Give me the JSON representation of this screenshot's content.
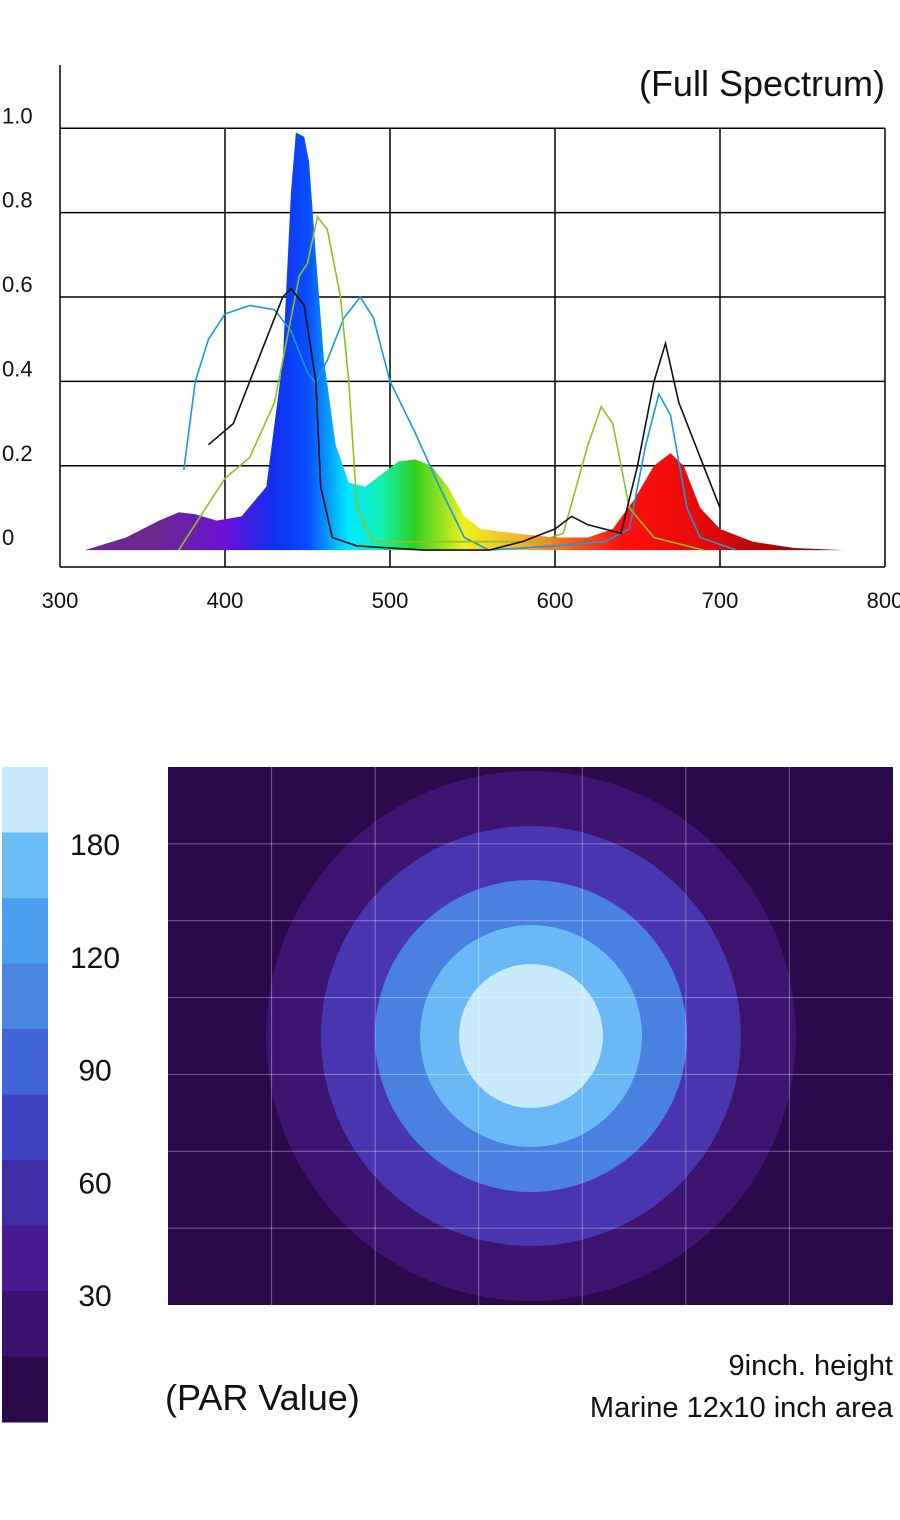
{
  "chart_data": [
    {
      "type": "spectrum",
      "title": "(Full Spectrum)",
      "xlim": [
        300,
        800
      ],
      "xticks": [
        300,
        400,
        500,
        600,
        700,
        800
      ],
      "ylim": [
        -0.04,
        1.15
      ],
      "yticks": [
        0,
        0.2,
        0.4,
        0.6,
        0.8,
        {
          "value": 1,
          "label": "1.0"
        }
      ],
      "grid": true,
      "series": [
        {
          "fill": "gradient",
          "gradient": [
            [
              360,
              "#6a2a8e"
            ],
            [
              400,
              "#6a10d8"
            ],
            [
              430,
              "#1030f0"
            ],
            [
              450,
              "#0a4cff"
            ],
            [
              475,
              "#00e8ff"
            ],
            [
              495,
              "#10f0b0"
            ],
            [
              515,
              "#30d020"
            ],
            [
              545,
              "#f0f020"
            ],
            [
              580,
              "#f8b030"
            ],
            [
              610,
              "#f06020"
            ],
            [
              640,
              "#ff1010"
            ],
            [
              690,
              "#e80808"
            ],
            [
              760,
              "#7a0a0a"
            ]
          ],
          "x": [
            315,
            340,
            360,
            372,
            382,
            395,
            410,
            425,
            435,
            440,
            443,
            448,
            451,
            455,
            460,
            467,
            475,
            485,
            495,
            505,
            515,
            525,
            535,
            545,
            555,
            575,
            600,
            620,
            635,
            648,
            660,
            670,
            678,
            688,
            700,
            720,
            745,
            775
          ],
          "values": [
            0,
            0.03,
            0.07,
            0.09,
            0.085,
            0.07,
            0.08,
            0.15,
            0.45,
            0.85,
            0.99,
            0.98,
            0.92,
            0.7,
            0.45,
            0.25,
            0.16,
            0.15,
            0.18,
            0.21,
            0.215,
            0.2,
            0.15,
            0.08,
            0.05,
            0.04,
            0.03,
            0.03,
            0.05,
            0.12,
            0.2,
            0.23,
            0.2,
            0.1,
            0.05,
            0.02,
            0.005,
            0
          ]
        },
        {
          "color": "#1a9ad6",
          "x": [
            375,
            382,
            390,
            400,
            415,
            430,
            440,
            450,
            455,
            462,
            472,
            482,
            490,
            500,
            515,
            530,
            545,
            560,
            600,
            630,
            645,
            655,
            663,
            670,
            680,
            688,
            710
          ],
          "values": [
            0.19,
            0.4,
            0.5,
            0.56,
            0.58,
            0.57,
            0.52,
            0.42,
            0.395,
            0.45,
            0.55,
            0.6,
            0.55,
            0.4,
            0.28,
            0.15,
            0.03,
            0,
            0.01,
            0.02,
            0.05,
            0.25,
            0.37,
            0.32,
            0.1,
            0.03,
            0
          ]
        },
        {
          "color": "#8dc21f",
          "x": [
            372,
            385,
            400,
            415,
            430,
            445,
            450,
            456,
            462,
            470,
            475,
            480,
            490,
            550,
            590,
            605,
            620,
            628,
            635,
            645,
            660,
            690
          ],
          "values": [
            0,
            0.08,
            0.17,
            0.22,
            0.35,
            0.65,
            0.68,
            0.79,
            0.76,
            0.6,
            0.4,
            0.1,
            0.02,
            0.02,
            0.02,
            0.04,
            0.25,
            0.34,
            0.3,
            0.1,
            0.03,
            0
          ]
        },
        {
          "color": "#111111",
          "x": [
            390,
            405,
            420,
            435,
            440,
            448,
            455,
            458,
            465,
            480,
            520,
            560,
            580,
            600,
            610,
            620,
            640,
            650,
            660,
            667,
            675,
            690,
            700
          ],
          "values": [
            0.25,
            0.3,
            0.45,
            0.6,
            0.62,
            0.58,
            0.4,
            0.15,
            0.03,
            0.01,
            0,
            0,
            0.02,
            0.05,
            0.08,
            0.06,
            0.04,
            0.2,
            0.4,
            0.49,
            0.35,
            0.2,
            0.1
          ]
        }
      ]
    },
    {
      "type": "contour",
      "title": "(PAR Value)",
      "notes": [
        "9inch. height",
        "Marine 12x10 inch area"
      ],
      "colorbar": {
        "colors": [
          "#c7eafc",
          "#6abef5",
          "#4aa0ee",
          "#4a85e2",
          "#3f65d8",
          "#3d43bf",
          "#3f2ea8",
          "#4a1a94",
          "#3a1270",
          "#2a0a4a"
        ],
        "ticks": [
          180,
          120,
          90,
          60,
          30
        ]
      },
      "zones": [
        "#2a0a4a",
        "#3d1470",
        "#4a35b0",
        "#4a80e0",
        "#6ab8f5",
        "#c7eafc"
      ]
    }
  ]
}
